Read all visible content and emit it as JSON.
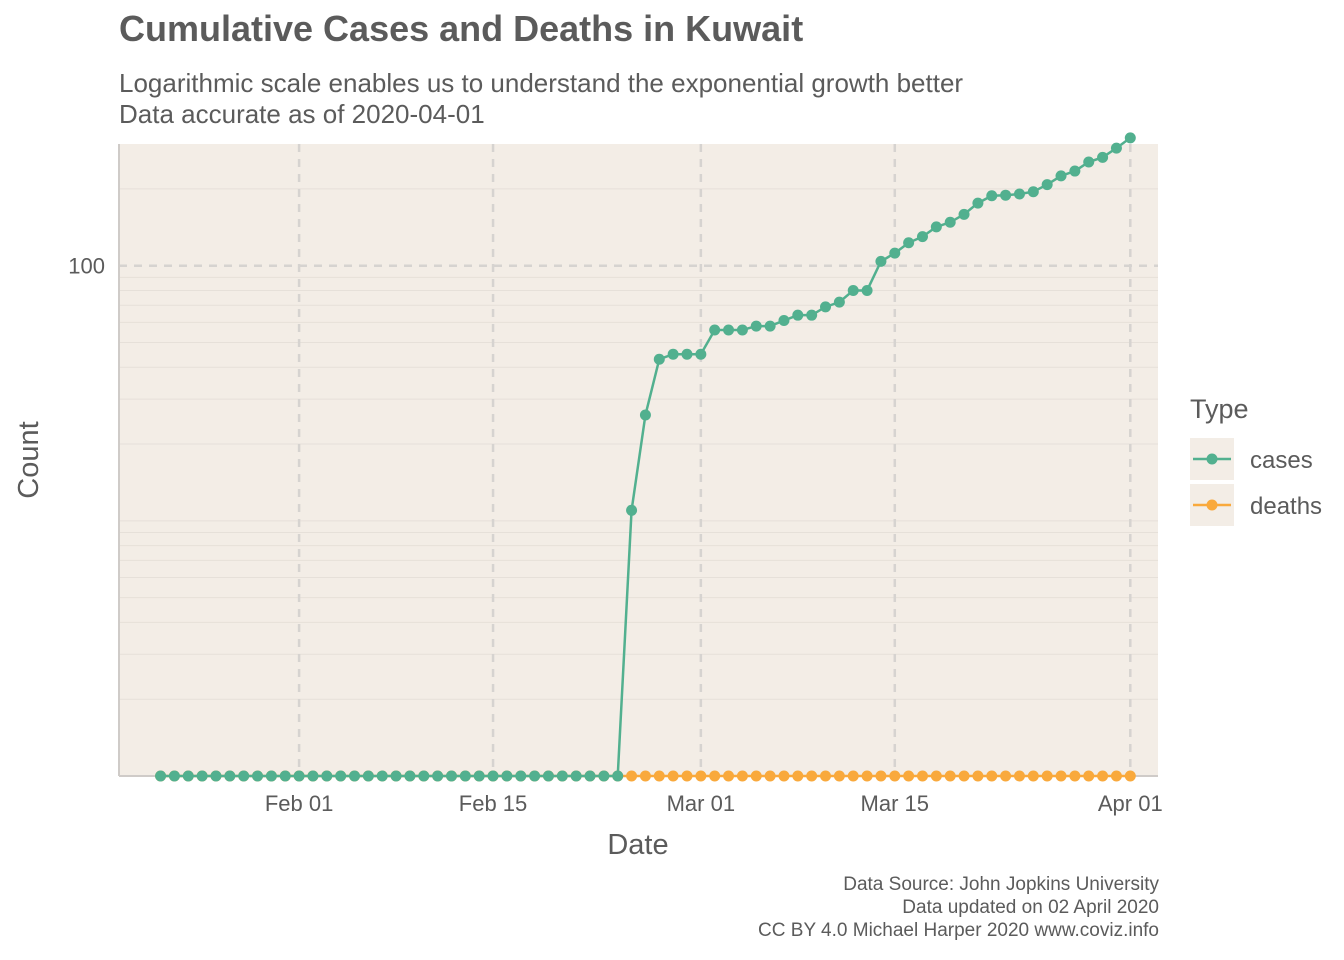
{
  "title": "Cumulative Cases and Deaths in Kuwait",
  "subtitle_lines": [
    "Logarithmic scale enables us to understand the exponential growth better",
    "Data accurate as of 2020-04-01"
  ],
  "caption_lines": [
    "Data Source: John Jopkins University",
    "Data updated on 02 April 2020",
    "CC BY 4.0 Michael Harper 2020 www.coviz.info"
  ],
  "colors": {
    "panel_bg": "#f3ede6",
    "grid": "#d6d3d0",
    "cases": "#52b08f",
    "deaths": "#f9a93c",
    "axis_line": "#cfcbc8"
  },
  "chart_data": {
    "type": "line",
    "title": "Cumulative Cases and Deaths in Kuwait",
    "xlabel": "Date",
    "ylabel": "Count",
    "y_scale": "log10",
    "ylim": [
      1,
      300
    ],
    "xlim": [
      "2020-01-19",
      "2020-04-03"
    ],
    "x_ticks": [
      {
        "date": "2020-02-01",
        "label": "Feb 01"
      },
      {
        "date": "2020-02-15",
        "label": "Feb 15"
      },
      {
        "date": "2020-03-01",
        "label": "Mar 01"
      },
      {
        "date": "2020-03-15",
        "label": "Mar 15"
      },
      {
        "date": "2020-04-01",
        "label": "Apr 01"
      }
    ],
    "y_ticks": [
      {
        "value": 100,
        "label": "100"
      }
    ],
    "grid": true,
    "legend": {
      "title": "Type",
      "position": "right"
    },
    "series": [
      {
        "name": "cases",
        "color": "#52b08f",
        "points": [
          [
            "2020-01-22",
            0
          ],
          [
            "2020-01-23",
            0
          ],
          [
            "2020-01-24",
            0
          ],
          [
            "2020-01-25",
            0
          ],
          [
            "2020-01-26",
            0
          ],
          [
            "2020-01-27",
            0
          ],
          [
            "2020-01-28",
            0
          ],
          [
            "2020-01-29",
            0
          ],
          [
            "2020-01-30",
            0
          ],
          [
            "2020-01-31",
            0
          ],
          [
            "2020-02-01",
            0
          ],
          [
            "2020-02-02",
            0
          ],
          [
            "2020-02-03",
            0
          ],
          [
            "2020-02-04",
            0
          ],
          [
            "2020-02-05",
            0
          ],
          [
            "2020-02-06",
            0
          ],
          [
            "2020-02-07",
            0
          ],
          [
            "2020-02-08",
            0
          ],
          [
            "2020-02-09",
            0
          ],
          [
            "2020-02-10",
            0
          ],
          [
            "2020-02-11",
            0
          ],
          [
            "2020-02-12",
            0
          ],
          [
            "2020-02-13",
            0
          ],
          [
            "2020-02-14",
            0
          ],
          [
            "2020-02-15",
            0
          ],
          [
            "2020-02-16",
            0
          ],
          [
            "2020-02-17",
            0
          ],
          [
            "2020-02-18",
            0
          ],
          [
            "2020-02-19",
            0
          ],
          [
            "2020-02-20",
            0
          ],
          [
            "2020-02-21",
            0
          ],
          [
            "2020-02-22",
            0
          ],
          [
            "2020-02-23",
            0
          ],
          [
            "2020-02-24",
            1
          ],
          [
            "2020-02-25",
            11
          ],
          [
            "2020-02-26",
            26
          ],
          [
            "2020-02-27",
            43
          ],
          [
            "2020-02-28",
            45
          ],
          [
            "2020-02-29",
            45
          ],
          [
            "2020-03-01",
            45
          ],
          [
            "2020-03-02",
            56
          ],
          [
            "2020-03-03",
            56
          ],
          [
            "2020-03-04",
            56
          ],
          [
            "2020-03-05",
            58
          ],
          [
            "2020-03-06",
            58
          ],
          [
            "2020-03-07",
            61
          ],
          [
            "2020-03-08",
            64
          ],
          [
            "2020-03-09",
            64
          ],
          [
            "2020-03-10",
            69
          ],
          [
            "2020-03-11",
            72
          ],
          [
            "2020-03-12",
            80
          ],
          [
            "2020-03-13",
            80
          ],
          [
            "2020-03-14",
            104
          ],
          [
            "2020-03-15",
            112
          ],
          [
            "2020-03-16",
            123
          ],
          [
            "2020-03-17",
            130
          ],
          [
            "2020-03-18",
            142
          ],
          [
            "2020-03-19",
            148
          ],
          [
            "2020-03-20",
            159
          ],
          [
            "2020-03-21",
            176
          ],
          [
            "2020-03-22",
            188
          ],
          [
            "2020-03-23",
            189
          ],
          [
            "2020-03-24",
            191
          ],
          [
            "2020-03-25",
            195
          ],
          [
            "2020-03-26",
            208
          ],
          [
            "2020-03-27",
            225
          ],
          [
            "2020-03-28",
            235
          ],
          [
            "2020-03-29",
            255
          ],
          [
            "2020-03-30",
            266
          ],
          [
            "2020-03-31",
            289
          ],
          [
            "2020-04-01",
            317
          ]
        ]
      },
      {
        "name": "deaths",
        "color": "#f9a93c",
        "points": [
          [
            "2020-01-22",
            0
          ],
          [
            "2020-01-23",
            0
          ],
          [
            "2020-01-24",
            0
          ],
          [
            "2020-01-25",
            0
          ],
          [
            "2020-01-26",
            0
          ],
          [
            "2020-01-27",
            0
          ],
          [
            "2020-01-28",
            0
          ],
          [
            "2020-01-29",
            0
          ],
          [
            "2020-01-30",
            0
          ],
          [
            "2020-01-31",
            0
          ],
          [
            "2020-02-01",
            0
          ],
          [
            "2020-02-02",
            0
          ],
          [
            "2020-02-03",
            0
          ],
          [
            "2020-02-04",
            0
          ],
          [
            "2020-02-05",
            0
          ],
          [
            "2020-02-06",
            0
          ],
          [
            "2020-02-07",
            0
          ],
          [
            "2020-02-08",
            0
          ],
          [
            "2020-02-09",
            0
          ],
          [
            "2020-02-10",
            0
          ],
          [
            "2020-02-11",
            0
          ],
          [
            "2020-02-12",
            0
          ],
          [
            "2020-02-13",
            0
          ],
          [
            "2020-02-14",
            0
          ],
          [
            "2020-02-15",
            0
          ],
          [
            "2020-02-16",
            0
          ],
          [
            "2020-02-17",
            0
          ],
          [
            "2020-02-18",
            0
          ],
          [
            "2020-02-19",
            0
          ],
          [
            "2020-02-20",
            0
          ],
          [
            "2020-02-21",
            0
          ],
          [
            "2020-02-22",
            0
          ],
          [
            "2020-02-23",
            0
          ],
          [
            "2020-02-24",
            0
          ],
          [
            "2020-02-25",
            0
          ],
          [
            "2020-02-26",
            0
          ],
          [
            "2020-02-27",
            0
          ],
          [
            "2020-02-28",
            0
          ],
          [
            "2020-02-29",
            0
          ],
          [
            "2020-03-01",
            0
          ],
          [
            "2020-03-02",
            0
          ],
          [
            "2020-03-03",
            0
          ],
          [
            "2020-03-04",
            0
          ],
          [
            "2020-03-05",
            0
          ],
          [
            "2020-03-06",
            0
          ],
          [
            "2020-03-07",
            0
          ],
          [
            "2020-03-08",
            0
          ],
          [
            "2020-03-09",
            0
          ],
          [
            "2020-03-10",
            0
          ],
          [
            "2020-03-11",
            0
          ],
          [
            "2020-03-12",
            0
          ],
          [
            "2020-03-13",
            0
          ],
          [
            "2020-03-14",
            0
          ],
          [
            "2020-03-15",
            0
          ],
          [
            "2020-03-16",
            0
          ],
          [
            "2020-03-17",
            0
          ],
          [
            "2020-03-18",
            0
          ],
          [
            "2020-03-19",
            0
          ],
          [
            "2020-03-20",
            0
          ],
          [
            "2020-03-21",
            0
          ],
          [
            "2020-03-22",
            0
          ],
          [
            "2020-03-23",
            0
          ],
          [
            "2020-03-24",
            0
          ],
          [
            "2020-03-25",
            0
          ],
          [
            "2020-03-26",
            0
          ],
          [
            "2020-03-27",
            0
          ],
          [
            "2020-03-28",
            0
          ],
          [
            "2020-03-29",
            0
          ],
          [
            "2020-03-30",
            0
          ],
          [
            "2020-03-31",
            0
          ],
          [
            "2020-04-01",
            0
          ]
        ]
      }
    ]
  }
}
